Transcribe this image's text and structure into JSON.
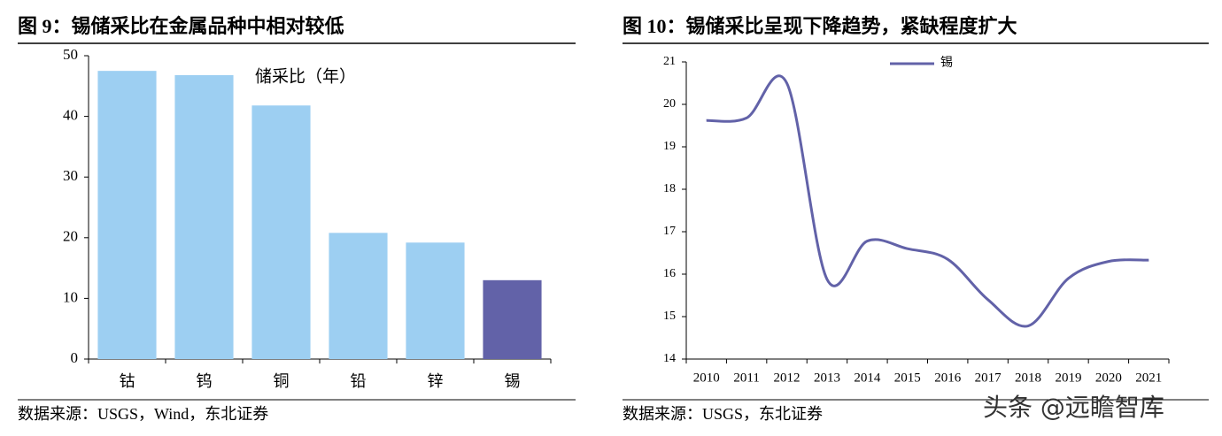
{
  "chart_data": [
    {
      "type": "bar",
      "title": "图 9：锡储采比在金属品种中相对较低",
      "annotation": "储采比（年）",
      "categories": [
        "钴",
        "钨",
        "铜",
        "铅",
        "锌",
        "锡"
      ],
      "values": [
        47.5,
        46.8,
        41.8,
        20.8,
        19.2,
        13
      ],
      "colors": [
        "#9dcff2",
        "#9dcff2",
        "#9dcff2",
        "#9dcff2",
        "#9dcff2",
        "#6262a8"
      ],
      "ylim": [
        0,
        50
      ],
      "yticks": [
        0,
        10,
        20,
        30,
        40,
        50
      ],
      "source": "数据来源：USGS，Wind，东北证券"
    },
    {
      "type": "line",
      "title": "图 10：锡储采比呈现下降趋势，紧缺程度扩大",
      "categories": [
        "2010",
        "2011",
        "2012",
        "2013",
        "2014",
        "2015",
        "2016",
        "2017",
        "2018",
        "2019",
        "2020",
        "2021"
      ],
      "series": [
        {
          "name": "锡",
          "color": "#6262a8",
          "values": [
            19.62,
            19.68,
            20.5,
            15.88,
            16.78,
            16.6,
            16.35,
            15.4,
            14.78,
            15.9,
            16.3,
            16.33
          ]
        }
      ],
      "ylim": [
        14,
        21
      ],
      "yticks": [
        14,
        15,
        16,
        17,
        18,
        19,
        20,
        21
      ],
      "source": "数据来源：USGS，东北证券",
      "watermark": "头条 @远瞻智库"
    }
  ]
}
